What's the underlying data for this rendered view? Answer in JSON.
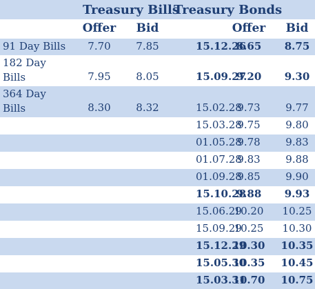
{
  "colors": {
    "stripe": "#c9d9ef",
    "text": "#1f3f74"
  },
  "headers": {
    "bills_title": "Treasury Bills",
    "bonds_title": "Treasury Bonds",
    "bills_offer": "Offer",
    "bills_bid": "Bid",
    "bonds_offer": "Offer",
    "bonds_bid": "Bid"
  },
  "rows": [
    {
      "bill_line1": "91 Day Bills",
      "bill_line2": "",
      "bill_offer": "7.70",
      "bill_bid": "7.85",
      "bond_date": "15.12.26",
      "bond_offer": "8.65",
      "bond_bid": "8.75",
      "bold": true,
      "shade": true
    },
    {
      "bill_line1": "182 Day",
      "bill_line2": "Bills",
      "bill_offer": "7.95",
      "bill_bid": "8.05",
      "bond_date": "15.09.27",
      "bond_offer": "9.20",
      "bond_bid": "9.30",
      "bold": true,
      "shade": false
    },
    {
      "bill_line1": "364 Day",
      "bill_line2": "Bills",
      "bill_offer": "8.30",
      "bill_bid": "8.32",
      "bond_date": "15.02.28",
      "bond_offer": "9.73",
      "bond_bid": "9.77",
      "bold": false,
      "shade": true
    },
    {
      "bill_line1": "",
      "bill_line2": "",
      "bill_offer": "",
      "bill_bid": "",
      "bond_date": "15.03.28",
      "bond_offer": "9.75",
      "bond_bid": "9.80",
      "bold": false,
      "shade": false
    },
    {
      "bill_line1": "",
      "bill_line2": "",
      "bill_offer": "",
      "bill_bid": "",
      "bond_date": "01.05.28",
      "bond_offer": "9.78",
      "bond_bid": "9.83",
      "bold": false,
      "shade": true
    },
    {
      "bill_line1": "",
      "bill_line2": "",
      "bill_offer": "",
      "bill_bid": "",
      "bond_date": "01.07.28",
      "bond_offer": "9.83",
      "bond_bid": "9.88",
      "bold": false,
      "shade": false
    },
    {
      "bill_line1": "",
      "bill_line2": "",
      "bill_offer": "",
      "bill_bid": "",
      "bond_date": "01.09.28",
      "bond_offer": "9.85",
      "bond_bid": "9.90",
      "bold": false,
      "shade": true
    },
    {
      "bill_line1": "",
      "bill_line2": "",
      "bill_offer": "",
      "bill_bid": "",
      "bond_date": "15.10.28",
      "bond_offer": "9.88",
      "bond_bid": "9.93",
      "bold": true,
      "shade": false
    },
    {
      "bill_line1": "",
      "bill_line2": "",
      "bill_offer": "",
      "bill_bid": "",
      "bond_date": "15.06.29",
      "bond_offer": "10.20",
      "bond_bid": "10.25",
      "bold": false,
      "shade": true
    },
    {
      "bill_line1": "",
      "bill_line2": "",
      "bill_offer": "",
      "bill_bid": "",
      "bond_date": "15.09.29",
      "bond_offer": "10.25",
      "bond_bid": "10.30",
      "bold": false,
      "shade": false
    },
    {
      "bill_line1": "",
      "bill_line2": "",
      "bill_offer": "",
      "bill_bid": "",
      "bond_date": "15.12.29",
      "bond_offer": "10.30",
      "bond_bid": "10.35",
      "bold": true,
      "shade": true
    },
    {
      "bill_line1": "",
      "bill_line2": "",
      "bill_offer": "",
      "bill_bid": "",
      "bond_date": "15.05.30",
      "bond_offer": "10.35",
      "bond_bid": "10.45",
      "bold": true,
      "shade": false
    },
    {
      "bill_line1": "",
      "bill_line2": "",
      "bill_offer": "",
      "bill_bid": "",
      "bond_date": "15.03.31",
      "bond_offer": "10.70",
      "bond_bid": "10.75",
      "bold": true,
      "shade": true
    }
  ]
}
